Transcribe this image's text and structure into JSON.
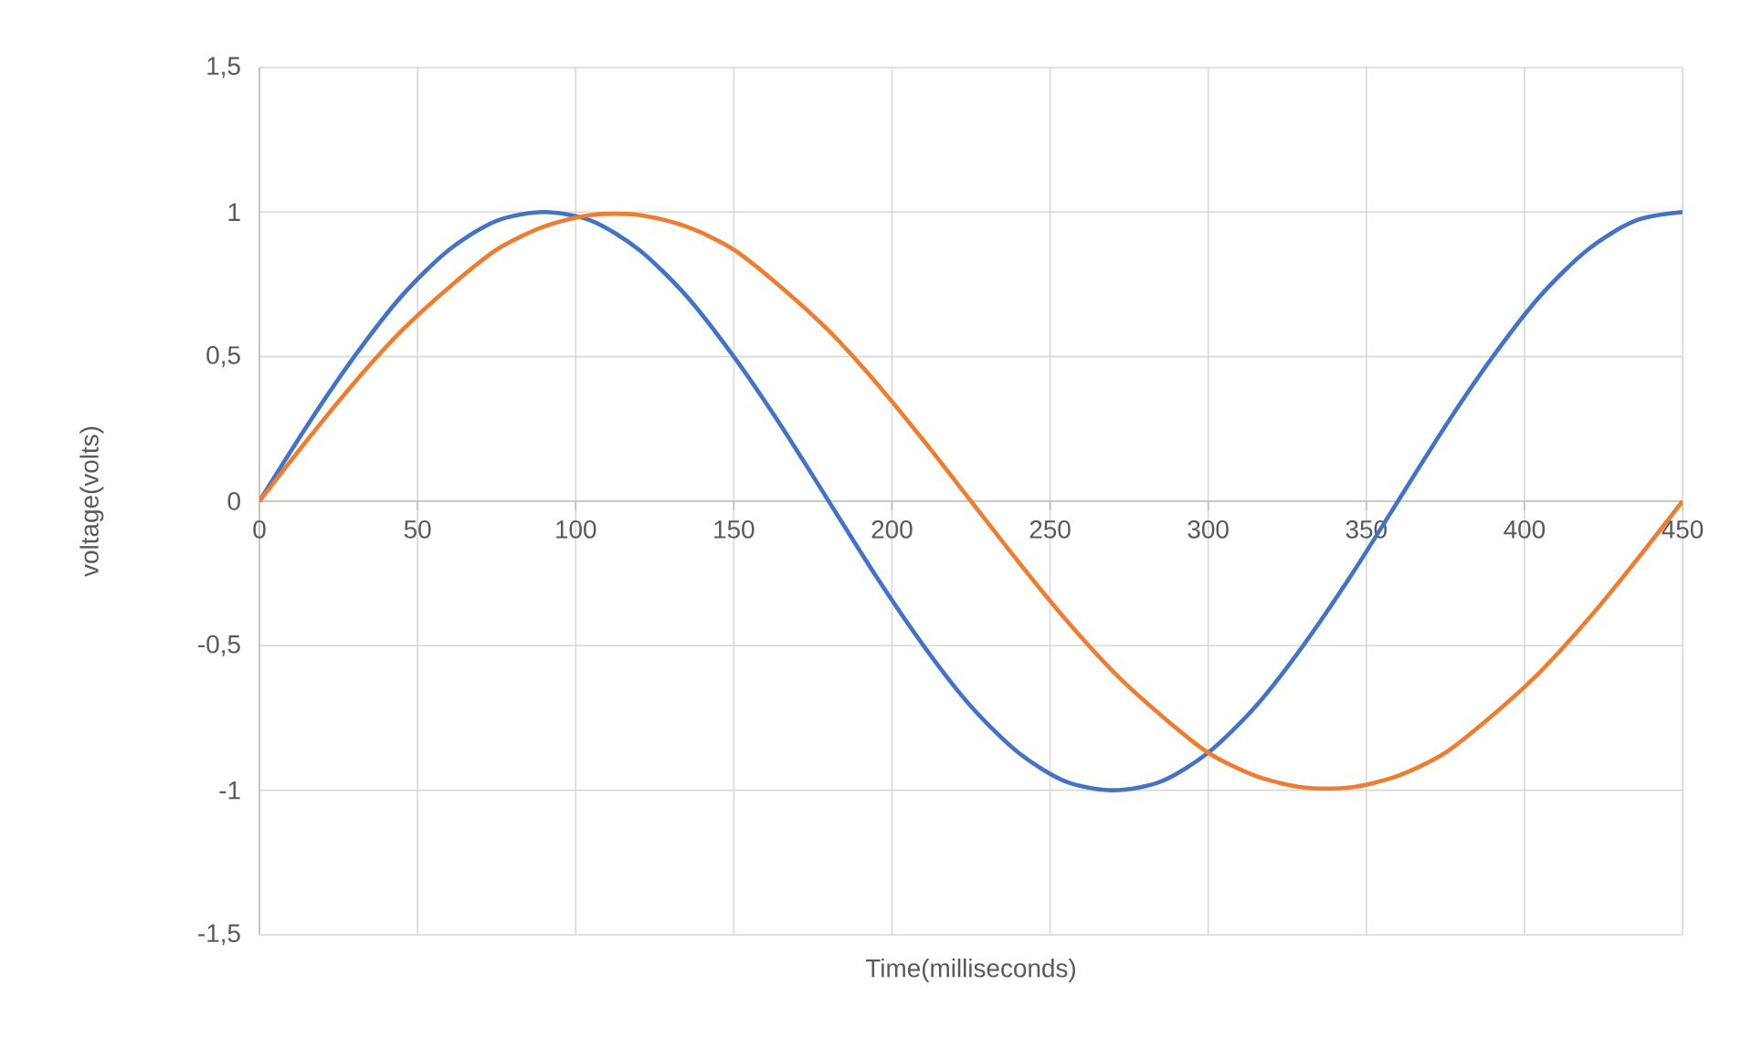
{
  "chart_data": {
    "type": "line",
    "xlabel": "Time(milliseconds)",
    "ylabel": "voltage(volts)",
    "x": [
      0,
      15,
      30,
      45,
      60,
      75,
      90,
      105,
      120,
      135,
      150,
      165,
      180,
      195,
      210,
      225,
      240,
      255,
      270,
      285,
      300,
      315,
      330,
      345,
      360,
      375,
      390,
      405,
      420,
      435,
      450
    ],
    "series": [
      {
        "color": "#4472c4",
        "values": [
          0,
          0.26,
          0.5,
          0.71,
          0.87,
          0.97,
          1,
          0.97,
          0.87,
          0.71,
          0.5,
          0.26,
          0,
          -0.26,
          -0.5,
          -0.71,
          -0.87,
          -0.97,
          -1,
          -0.97,
          -0.87,
          -0.71,
          -0.5,
          -0.26,
          0,
          0.26,
          0.5,
          0.71,
          0.87,
          0.97,
          1
        ]
      },
      {
        "color": "#ed7d31",
        "values": [
          0,
          0.21,
          0.41,
          0.59,
          0.74,
          0.87,
          0.95,
          0.99,
          0.99,
          0.95,
          0.87,
          0.74,
          0.59,
          0.41,
          0.21,
          0,
          -0.21,
          -0.41,
          -0.59,
          -0.74,
          -0.87,
          -0.95,
          -0.99,
          -0.99,
          -0.95,
          -0.87,
          -0.74,
          -0.59,
          -0.41,
          -0.21,
          0
        ]
      }
    ],
    "xlim": [
      0,
      450
    ],
    "xticks": [
      0,
      50,
      100,
      150,
      200,
      250,
      300,
      350,
      400,
      450
    ],
    "ylim": [
      -1.5,
      1.5
    ],
    "yticks": [
      {
        "value": -1.5,
        "label": "-1,5"
      },
      -1,
      {
        "value": -0.5,
        "label": "-0,5"
      },
      0,
      {
        "value": 0.5,
        "label": "0,5"
      },
      1,
      {
        "value": 1.5,
        "label": "1,5"
      }
    ],
    "grid": true,
    "marker": "none",
    "line_style": "solid"
  }
}
